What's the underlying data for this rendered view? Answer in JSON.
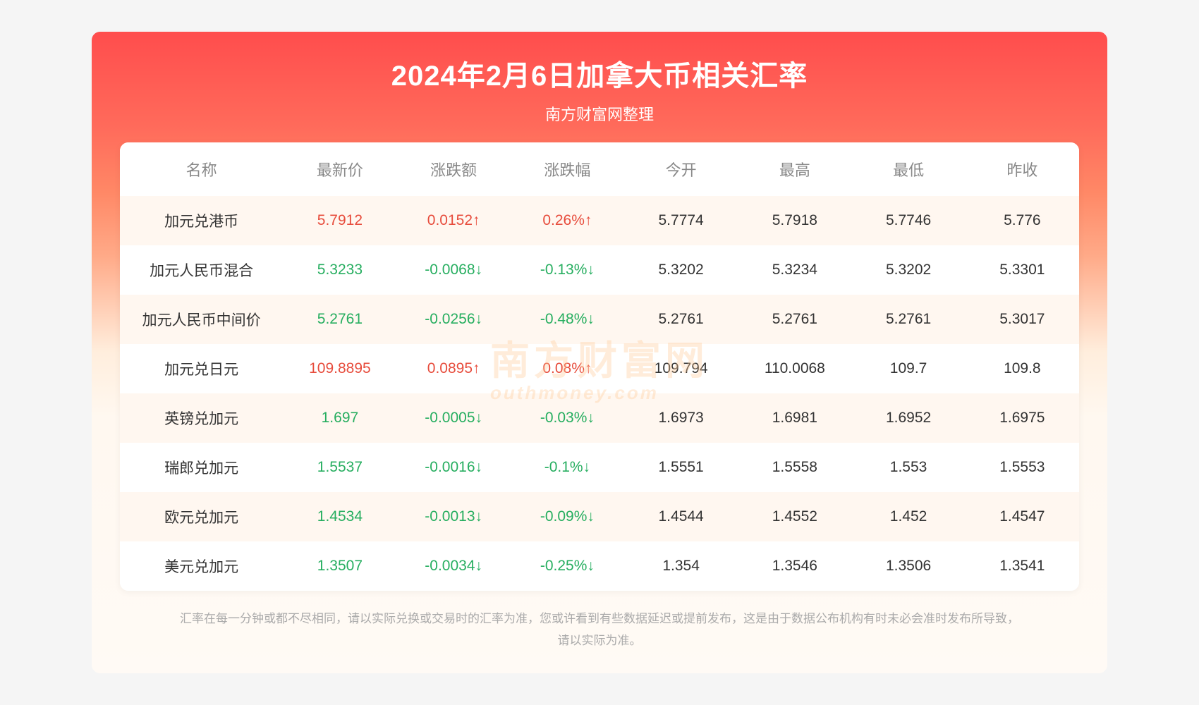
{
  "header": {
    "title": "2024年2月6日加拿大币相关汇率",
    "subtitle": "南方财富网整理"
  },
  "colors": {
    "up": "#e74c3c",
    "down": "#27ae60",
    "header_text": "#888888",
    "body_text": "#333333",
    "row_alt_bg": "#fff7f0",
    "row_bg": "#ffffff",
    "footer_text": "#aaaaaa",
    "gradient_top": "#ff4d4d",
    "gradient_bottom": "#fffaf5"
  },
  "watermark": {
    "main": "南方财富网",
    "sub": "outhmoney.com"
  },
  "table": {
    "columns": [
      "名称",
      "最新价",
      "涨跌额",
      "涨跌幅",
      "今开",
      "最高",
      "最低",
      "昨收"
    ],
    "rows": [
      {
        "name": "加元兑港币",
        "latest": "5.7912",
        "change_amt": "0.0152↑",
        "change_pct": "0.26%↑",
        "direction": "up",
        "open": "5.7774",
        "high": "5.7918",
        "low": "5.7746",
        "prev_close": "5.776"
      },
      {
        "name": "加元人民币混合",
        "latest": "5.3233",
        "change_amt": "-0.0068↓",
        "change_pct": "-0.13%↓",
        "direction": "down",
        "open": "5.3202",
        "high": "5.3234",
        "low": "5.3202",
        "prev_close": "5.3301"
      },
      {
        "name": "加元人民币中间价",
        "latest": "5.2761",
        "change_amt": "-0.0256↓",
        "change_pct": "-0.48%↓",
        "direction": "down",
        "open": "5.2761",
        "high": "5.2761",
        "low": "5.2761",
        "prev_close": "5.3017"
      },
      {
        "name": "加元兑日元",
        "latest": "109.8895",
        "change_amt": "0.0895↑",
        "change_pct": "0.08%↑",
        "direction": "up",
        "open": "109.794",
        "high": "110.0068",
        "low": "109.7",
        "prev_close": "109.8"
      },
      {
        "name": "英镑兑加元",
        "latest": "1.697",
        "change_amt": "-0.0005↓",
        "change_pct": "-0.03%↓",
        "direction": "down",
        "open": "1.6973",
        "high": "1.6981",
        "low": "1.6952",
        "prev_close": "1.6975"
      },
      {
        "name": "瑞郎兑加元",
        "latest": "1.5537",
        "change_amt": "-0.0016↓",
        "change_pct": "-0.1%↓",
        "direction": "down",
        "open": "1.5551",
        "high": "1.5558",
        "low": "1.553",
        "prev_close": "1.5553"
      },
      {
        "name": "欧元兑加元",
        "latest": "1.4534",
        "change_amt": "-0.0013↓",
        "change_pct": "-0.09%↓",
        "direction": "down",
        "open": "1.4544",
        "high": "1.4552",
        "low": "1.452",
        "prev_close": "1.4547"
      },
      {
        "name": "美元兑加元",
        "latest": "1.3507",
        "change_amt": "-0.0034↓",
        "change_pct": "-0.25%↓",
        "direction": "down",
        "open": "1.354",
        "high": "1.3546",
        "low": "1.3506",
        "prev_close": "1.3541"
      }
    ]
  },
  "footer": {
    "line1": "汇率在每一分钟或都不尽相同，请以实际兑换或交易时的汇率为准，您或许看到有些数据延迟或提前发布，这是由于数据公布机构有时未必会准时发布所导致，",
    "line2": "请以实际为准。"
  }
}
